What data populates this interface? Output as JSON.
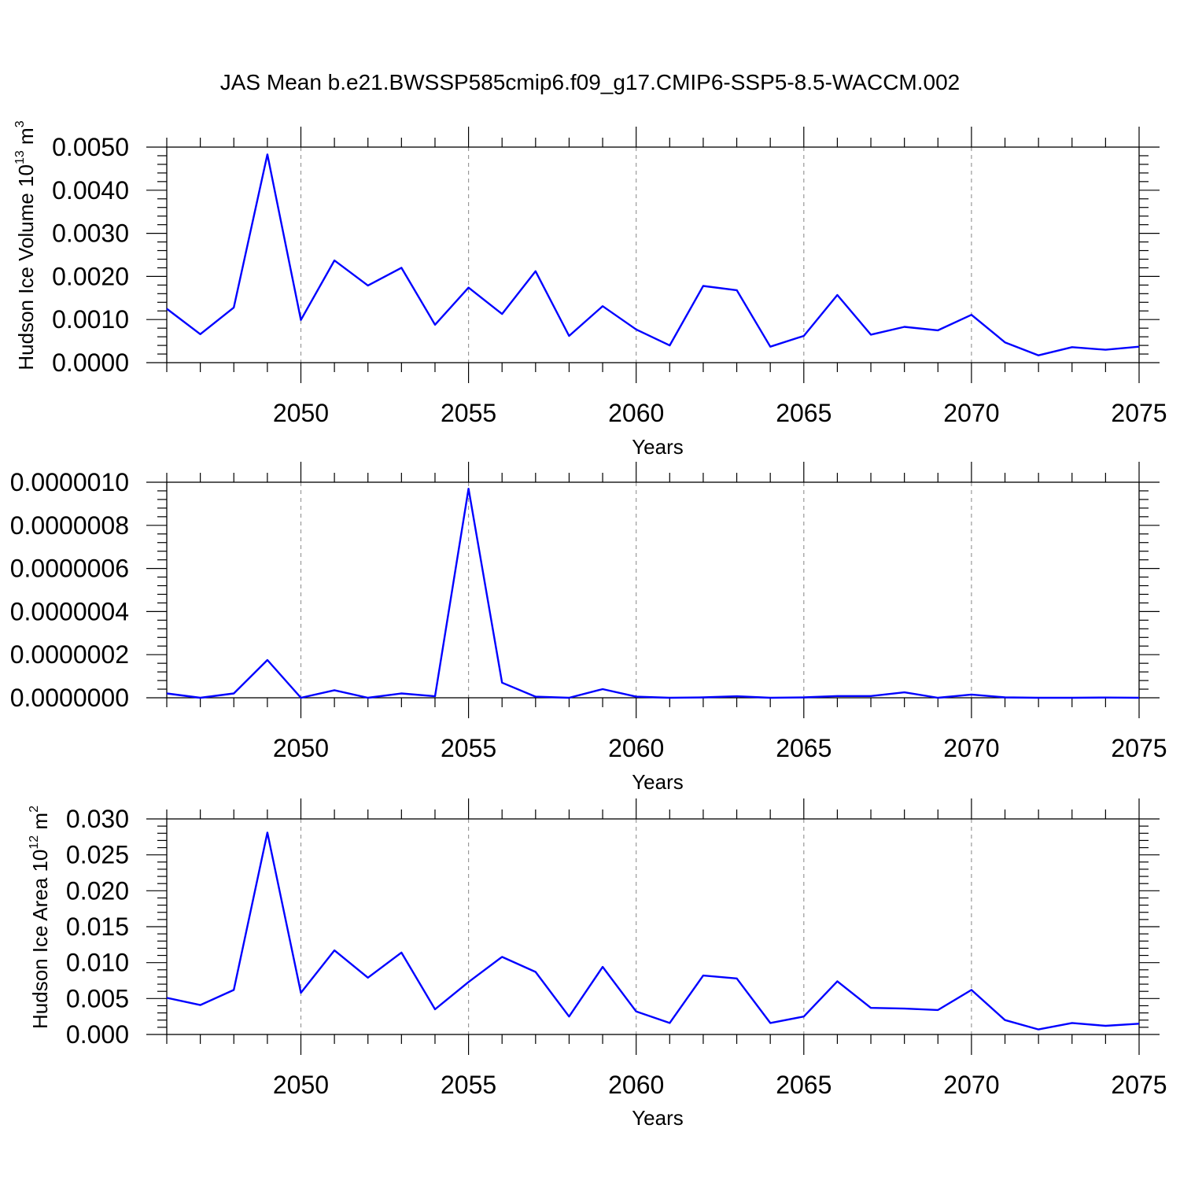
{
  "title": "JAS Mean b.e21.BWSSP585cmip6.f09_g17.CMIP6-SSP5-8.5-WACCM.002",
  "chart_data": [
    {
      "type": "line",
      "xlabel": "Years",
      "ylabel": {
        "text": "Hudson Ice Volume 10",
        "sup": "13",
        "unit": " m",
        "unit_sup": "3"
      },
      "x": [
        2046,
        2047,
        2048,
        2049,
        2050,
        2051,
        2052,
        2053,
        2054,
        2055,
        2056,
        2057,
        2058,
        2059,
        2060,
        2061,
        2062,
        2063,
        2064,
        2065,
        2066,
        2067,
        2068,
        2069,
        2070,
        2071,
        2072,
        2073,
        2074,
        2075
      ],
      "xlim": [
        2046,
        2075
      ],
      "xticks": [
        "2050",
        "2055",
        "2060",
        "2065",
        "2070",
        "2075"
      ],
      "ylim": [
        0,
        0.005
      ],
      "yticks": [
        "0.0000",
        "0.0010",
        "0.0020",
        "0.0030",
        "0.0040",
        "0.0050"
      ],
      "grid": "dashed vertical lines at major x ticks",
      "color": "#0000ff",
      "series": [
        {
          "values": [
            0.00125,
            0.00066,
            0.00128,
            0.00483,
            0.00099,
            0.00237,
            0.00179,
            0.0022,
            0.00088,
            0.00174,
            0.00113,
            0.00212,
            0.00062,
            0.00131,
            0.00077,
            0.0004,
            0.00178,
            0.00168,
            0.00037,
            0.00062,
            0.00157,
            0.00065,
            0.00083,
            0.00075,
            0.00111,
            0.00047,
            0.00017,
            0.00036,
            0.0003,
            0.00037
          ]
        }
      ]
    },
    {
      "type": "line",
      "xlabel": "Years",
      "x": [
        2046,
        2047,
        2048,
        2049,
        2050,
        2051,
        2052,
        2053,
        2054,
        2055,
        2056,
        2057,
        2058,
        2059,
        2060,
        2061,
        2062,
        2063,
        2064,
        2065,
        2066,
        2067,
        2068,
        2069,
        2070,
        2071,
        2072,
        2073,
        2074,
        2075
      ],
      "xlim": [
        2046,
        2075
      ],
      "xticks": [
        "2050",
        "2055",
        "2060",
        "2065",
        "2070",
        "2075"
      ],
      "ylim": [
        0,
        1e-06
      ],
      "yticks": [
        "0.0000000",
        "0.0000002",
        "0.0000004",
        "0.0000006",
        "0.0000008",
        "0.0000010"
      ],
      "grid": "dashed vertical lines at major x ticks",
      "color": "#0000ff",
      "series": [
        {
          "values": [
            2e-08,
            0,
            2e-08,
            1.75e-07,
            0,
            3.5e-08,
            0,
            2e-08,
            7e-09,
            9.7e-07,
            7e-08,
            5e-09,
            0,
            4e-08,
            5e-09,
            0,
            2e-09,
            7e-09,
            0,
            2e-09,
            8e-09,
            8e-09,
            2.5e-08,
            0,
            1.5e-08,
            2e-09,
            0,
            0,
            1e-09,
            0
          ]
        }
      ]
    },
    {
      "type": "line",
      "xlabel": "Years",
      "ylabel": {
        "text": "Hudson Ice Area 10",
        "sup": "12",
        "unit": " m",
        "unit_sup": "2"
      },
      "x": [
        2046,
        2047,
        2048,
        2049,
        2050,
        2051,
        2052,
        2053,
        2054,
        2055,
        2056,
        2057,
        2058,
        2059,
        2060,
        2061,
        2062,
        2063,
        2064,
        2065,
        2066,
        2067,
        2068,
        2069,
        2070,
        2071,
        2072,
        2073,
        2074,
        2075
      ],
      "xlim": [
        2046,
        2075
      ],
      "xticks": [
        "2050",
        "2055",
        "2060",
        "2065",
        "2070",
        "2075"
      ],
      "ylim": [
        0,
        0.03
      ],
      "yticks": [
        "0.000",
        "0.005",
        "0.010",
        "0.015",
        "0.020",
        "0.025",
        "0.030"
      ],
      "grid": "dashed vertical lines at major x ticks",
      "color": "#0000ff",
      "series": [
        {
          "values": [
            0.0051,
            0.0041,
            0.0062,
            0.0281,
            0.0058,
            0.0117,
            0.0079,
            0.0114,
            0.0035,
            0.0073,
            0.0108,
            0.0087,
            0.0025,
            0.0094,
            0.0032,
            0.0016,
            0.0082,
            0.0078,
            0.0016,
            0.0025,
            0.0074,
            0.0037,
            0.0036,
            0.0034,
            0.0062,
            0.002,
            0.0007,
            0.0016,
            0.0012,
            0.0015
          ]
        }
      ]
    }
  ]
}
